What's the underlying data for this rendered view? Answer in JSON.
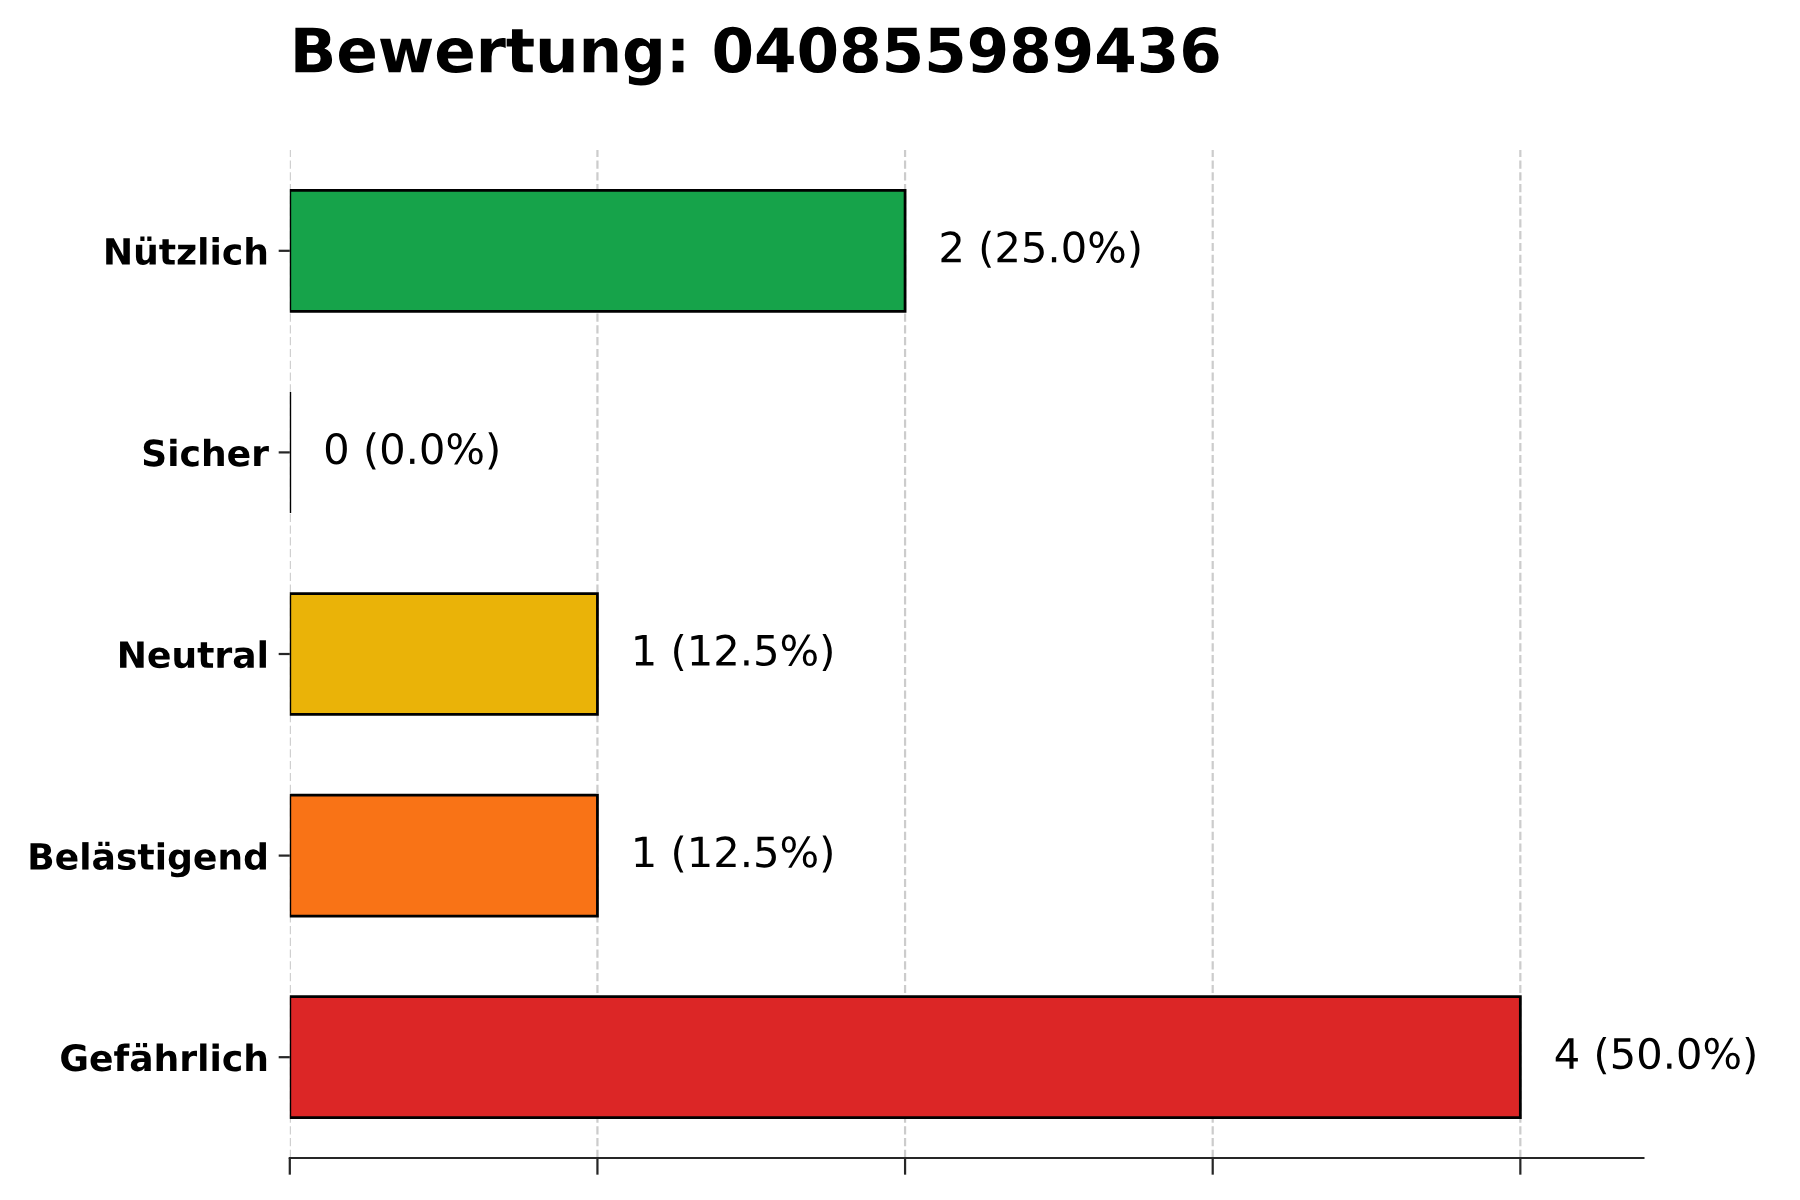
{
  "chart_data": {
    "type": "bar",
    "orientation": "horizontal",
    "title": "Bewertung: 040855989436",
    "categories": [
      "Nützlich",
      "Sicher",
      "Neutral",
      "Belästigend",
      "Gefährlich"
    ],
    "values": [
      2,
      0,
      1,
      1,
      4
    ],
    "colors": [
      "#16a34a",
      "#000000",
      "#eab308",
      "#f97316",
      "#dc2626"
    ],
    "value_labels": [
      "2 (25.0%)",
      "0 (0.0%)",
      "1 (12.5%)",
      "1 (12.5%)",
      "4 (50.0%)"
    ],
    "xlim": [
      0,
      4.4
    ],
    "xticks": [
      {
        "value": 0,
        "label": null
      },
      {
        "value": 1,
        "label": null
      },
      {
        "value": 2,
        "label": null
      },
      {
        "value": 3,
        "label": null
      },
      {
        "value": 4,
        "label": null
      }
    ],
    "tick_labels": "y",
    "grid": "x",
    "legend": false
  }
}
